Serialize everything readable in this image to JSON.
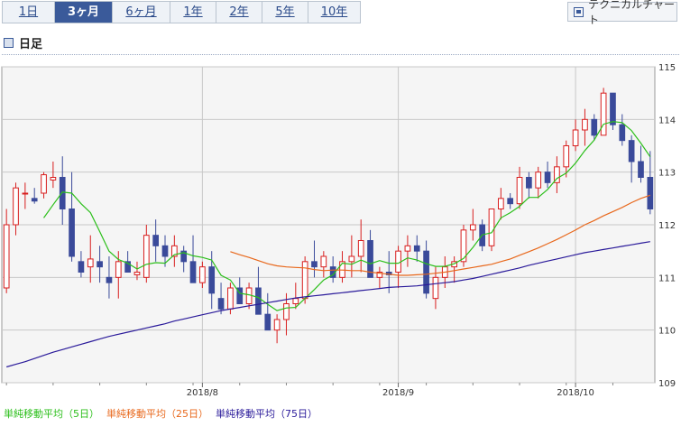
{
  "tabs": [
    {
      "label": "1日",
      "active": false
    },
    {
      "label": "3ヶ月",
      "active": true
    },
    {
      "label": "6ヶ月",
      "active": false
    },
    {
      "label": "1年",
      "active": false
    },
    {
      "label": "2年",
      "active": false
    },
    {
      "label": "5年",
      "active": false
    },
    {
      "label": "10年",
      "active": false
    }
  ],
  "tech_button": "テクニカルチャート",
  "section_title": "日足",
  "legend": [
    {
      "label": "単純移動平均（5日）",
      "color": "#2bbf1a"
    },
    {
      "label": "単純移動平均（25日）",
      "color": "#e8681c"
    },
    {
      "label": "単純移動平均（75日）",
      "color": "#2a1a9a"
    }
  ],
  "colors": {
    "up": "#d81e1e",
    "down": "#3a4a9a",
    "ma5": "#2bbf1a",
    "ma25": "#e8681c",
    "ma75": "#2a1a9a",
    "grid": "#c8c8c8",
    "plot_bg": "#f5f5f5"
  },
  "chart_data": {
    "type": "candlestick",
    "ylim": [
      109,
      115
    ],
    "y_ticks": [
      "109",
      "110",
      "111",
      "112",
      "113",
      "114",
      "115"
    ],
    "x_ticks": [
      "2018/8",
      "2018/9",
      "2018/10"
    ],
    "x_tick_index": [
      21,
      42,
      61
    ],
    "candles": [
      [
        110.8,
        112.3,
        110.7,
        112.0
      ],
      [
        112.0,
        112.8,
        111.8,
        112.7
      ],
      [
        112.6,
        112.8,
        112.3,
        112.6
      ],
      [
        112.5,
        112.7,
        112.4,
        112.45
      ],
      [
        112.6,
        113.0,
        112.5,
        112.95
      ],
      [
        112.85,
        113.2,
        112.7,
        112.9
      ],
      [
        112.9,
        113.3,
        112.0,
        112.3
      ],
      [
        112.3,
        113.0,
        111.3,
        111.4
      ],
      [
        111.3,
        111.5,
        111.0,
        111.1
      ],
      [
        111.2,
        111.8,
        110.9,
        111.35
      ],
      [
        111.3,
        111.6,
        110.9,
        111.2
      ],
      [
        111.0,
        111.4,
        110.6,
        110.9
      ],
      [
        111.0,
        111.5,
        110.6,
        111.3
      ],
      [
        111.3,
        111.5,
        111.1,
        111.1
      ],
      [
        111.05,
        111.3,
        110.95,
        111.1
      ],
      [
        111.0,
        112.0,
        110.9,
        111.8
      ],
      [
        111.8,
        112.1,
        111.3,
        111.6
      ],
      [
        111.6,
        111.8,
        111.2,
        111.4
      ],
      [
        111.4,
        111.8,
        111.2,
        111.6
      ],
      [
        111.5,
        111.6,
        111.1,
        111.3
      ],
      [
        111.3,
        111.8,
        110.9,
        110.9
      ],
      [
        110.9,
        111.3,
        110.8,
        111.2
      ],
      [
        111.2,
        111.5,
        110.4,
        110.7
      ],
      [
        110.6,
        110.9,
        110.3,
        110.4
      ],
      [
        110.4,
        110.9,
        110.3,
        110.8
      ],
      [
        110.8,
        111.0,
        110.5,
        110.5
      ],
      [
        110.5,
        110.9,
        110.4,
        110.8
      ],
      [
        110.8,
        111.2,
        110.3,
        110.3
      ],
      [
        110.3,
        110.7,
        110.0,
        110.0
      ],
      [
        110.0,
        110.3,
        109.75,
        110.2
      ],
      [
        110.2,
        110.7,
        109.9,
        110.5
      ],
      [
        110.5,
        110.9,
        110.4,
        110.6
      ],
      [
        110.6,
        111.4,
        110.5,
        111.3
      ],
      [
        111.3,
        111.7,
        111.0,
        111.2
      ],
      [
        111.2,
        111.5,
        111.0,
        111.4
      ],
      [
        111.2,
        111.4,
        110.9,
        111.0
      ],
      [
        111.0,
        111.5,
        110.9,
        111.3
      ],
      [
        111.3,
        111.8,
        111.0,
        111.4
      ],
      [
        111.4,
        112.1,
        111.1,
        111.7
      ],
      [
        111.7,
        111.9,
        111.0,
        111.0
      ],
      [
        111.0,
        111.2,
        110.8,
        111.1
      ],
      [
        111.1,
        111.5,
        110.7,
        111.05
      ],
      [
        111.1,
        111.6,
        110.8,
        111.5
      ],
      [
        111.5,
        111.8,
        111.2,
        111.6
      ],
      [
        111.6,
        111.8,
        111.3,
        111.5
      ],
      [
        111.5,
        111.7,
        110.6,
        110.7
      ],
      [
        110.6,
        111.2,
        110.4,
        111.0
      ],
      [
        111.0,
        111.4,
        110.8,
        111.2
      ],
      [
        111.2,
        111.4,
        110.9,
        111.3
      ],
      [
        111.3,
        112.0,
        111.2,
        111.9
      ],
      [
        111.9,
        112.3,
        111.7,
        112.0
      ],
      [
        112.0,
        112.1,
        111.5,
        111.6
      ],
      [
        111.6,
        112.3,
        111.5,
        112.3
      ],
      [
        112.3,
        112.7,
        112.1,
        112.5
      ],
      [
        112.5,
        112.6,
        112.3,
        112.4
      ],
      [
        112.4,
        113.1,
        112.3,
        112.9
      ],
      [
        112.9,
        113.0,
        112.5,
        112.7
      ],
      [
        112.7,
        113.1,
        112.5,
        113.0
      ],
      [
        113.0,
        113.2,
        112.7,
        112.8
      ],
      [
        112.8,
        113.3,
        112.6,
        113.1
      ],
      [
        113.1,
        113.6,
        112.9,
        113.5
      ],
      [
        113.5,
        114.0,
        113.4,
        113.8
      ],
      [
        113.8,
        114.2,
        113.5,
        114.0
      ],
      [
        114.0,
        114.1,
        113.6,
        113.7
      ],
      [
        113.7,
        114.6,
        113.7,
        114.5
      ],
      [
        114.5,
        114.5,
        113.8,
        113.9
      ],
      [
        113.9,
        114.1,
        113.5,
        113.6
      ],
      [
        113.6,
        113.7,
        112.8,
        113.2
      ],
      [
        113.2,
        113.5,
        112.8,
        112.9
      ],
      [
        112.9,
        113.4,
        112.2,
        112.3
      ]
    ],
    "series": [
      {
        "name": "単純移動平均（5日）",
        "values": [
          null,
          null,
          null,
          null,
          112.13,
          112.38,
          112.62,
          112.6,
          112.4,
          112.23,
          111.87,
          111.5,
          111.34,
          111.27,
          111.16,
          111.25,
          111.28,
          111.27,
          111.43,
          111.47,
          111.41,
          111.38,
          111.33,
          111.04,
          110.95,
          110.7,
          110.67,
          110.62,
          110.49,
          110.37,
          110.42,
          110.43,
          110.6,
          110.77,
          110.95,
          111.05,
          111.27,
          111.25,
          111.33,
          111.26,
          111.32,
          111.27,
          111.27,
          111.37,
          111.33,
          111.26,
          111.21,
          111.21,
          111.26,
          111.36,
          111.57,
          111.81,
          111.85,
          112.13,
          112.23,
          112.35,
          112.52,
          112.52,
          112.67,
          112.88,
          112.98,
          113.17,
          113.41,
          113.61,
          113.91,
          113.96,
          113.94,
          113.79,
          113.55,
          113.29
        ]
      },
      {
        "name": "単純移動平均（25日）",
        "values": [
          null,
          null,
          null,
          null,
          null,
          null,
          null,
          null,
          null,
          null,
          null,
          null,
          null,
          null,
          null,
          null,
          null,
          null,
          null,
          null,
          null,
          null,
          null,
          null,
          111.49,
          111.43,
          111.38,
          111.32,
          111.26,
          111.22,
          111.2,
          111.19,
          111.18,
          111.15,
          111.13,
          111.14,
          111.14,
          111.13,
          111.13,
          111.1,
          111.08,
          111.06,
          111.04,
          111.04,
          111.05,
          111.06,
          111.08,
          111.1,
          111.13,
          111.16,
          111.19,
          111.22,
          111.25,
          111.3,
          111.35,
          111.42,
          111.49,
          111.56,
          111.64,
          111.72,
          111.81,
          111.9,
          112.0,
          112.08,
          112.17,
          112.25,
          112.33,
          112.42,
          112.5,
          112.56
        ]
      },
      {
        "name": "単純移動平均（75日）",
        "values": [
          109.3,
          109.35,
          109.4,
          109.46,
          109.52,
          109.58,
          109.63,
          109.68,
          109.73,
          109.78,
          109.83,
          109.88,
          109.92,
          109.96,
          110.0,
          110.04,
          110.08,
          110.12,
          110.17,
          110.21,
          110.25,
          110.29,
          110.33,
          110.37,
          110.4,
          110.43,
          110.46,
          110.49,
          110.52,
          110.55,
          110.58,
          110.61,
          110.63,
          110.65,
          110.67,
          110.69,
          110.71,
          110.73,
          110.75,
          110.77,
          110.79,
          110.81,
          110.82,
          110.83,
          110.84,
          110.86,
          110.88,
          110.9,
          110.92,
          110.95,
          110.98,
          111.02,
          111.06,
          111.1,
          111.14,
          111.18,
          111.23,
          111.27,
          111.31,
          111.35,
          111.39,
          111.43,
          111.47,
          111.5,
          111.53,
          111.56,
          111.59,
          111.62,
          111.65,
          111.68
        ]
      }
    ]
  }
}
